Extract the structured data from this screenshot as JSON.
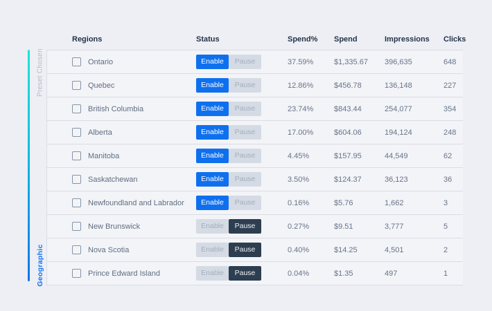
{
  "rail": {
    "top_label": "Preset Chosen",
    "bottom_label": "Geographic",
    "gradient_top_color": "#1fe5d2",
    "gradient_bottom_color": "#1173f0"
  },
  "table": {
    "columns": [
      "Regions",
      "Status",
      "Spend%",
      "Spend",
      "Impressions",
      "Clicks"
    ],
    "status_buttons": {
      "enable": "Enable",
      "pause": "Pause"
    },
    "rows": [
      {
        "region": "Ontario",
        "status": "enabled",
        "spend_pct": "37.59%",
        "spend": "$1,335.67",
        "impressions": "396,635",
        "clicks": "648"
      },
      {
        "region": "Quebec",
        "status": "enabled",
        "spend_pct": "12.86%",
        "spend": "$456.78",
        "impressions": "136,148",
        "clicks": "227"
      },
      {
        "region": "British Columbia",
        "status": "enabled",
        "spend_pct": "23.74%",
        "spend": "$843.44",
        "impressions": "254,077",
        "clicks": "354"
      },
      {
        "region": "Alberta",
        "status": "enabled",
        "spend_pct": "17.00%",
        "spend": "$604.06",
        "impressions": "194,124",
        "clicks": "248"
      },
      {
        "region": "Manitoba",
        "status": "enabled",
        "spend_pct": "4.45%",
        "spend": "$157.95",
        "impressions": "44,549",
        "clicks": "62"
      },
      {
        "region": "Saskatchewan",
        "status": "enabled",
        "spend_pct": "3.50%",
        "spend": "$124.37",
        "impressions": "36,123",
        "clicks": "36"
      },
      {
        "region": "Newfoundland and Labrador",
        "status": "enabled",
        "spend_pct": "0.16%",
        "spend": "$5.76",
        "impressions": "1,662",
        "clicks": "3"
      },
      {
        "region": "New Brunswick",
        "status": "paused",
        "spend_pct": "0.27%",
        "spend": "$9.51",
        "impressions": "3,777",
        "clicks": "5"
      },
      {
        "region": "Nova Scotia",
        "status": "paused",
        "spend_pct": "0.40%",
        "spend": "$14.25",
        "impressions": "4,501",
        "clicks": "2"
      },
      {
        "region": "Prince Edward Island",
        "status": "paused",
        "spend_pct": "0.04%",
        "spend": "$1.35",
        "impressions": "497",
        "clicks": "1"
      }
    ]
  },
  "colors": {
    "page_background": "#edeff4",
    "row_background": "#f3f4f8",
    "row_border": "#d9dce3",
    "accent_blue": "#0f70ee",
    "pause_dark": "#2d3e50",
    "inactive_button_bg": "#d5dbe4",
    "inactive_button_text": "#a2adbd",
    "header_text": "#25334a",
    "body_text": "#5f6e81",
    "preset_label_text": "#b4bbc7",
    "rail_cyan": "#1fe5d2",
    "rail_blue": "#1173f0"
  }
}
